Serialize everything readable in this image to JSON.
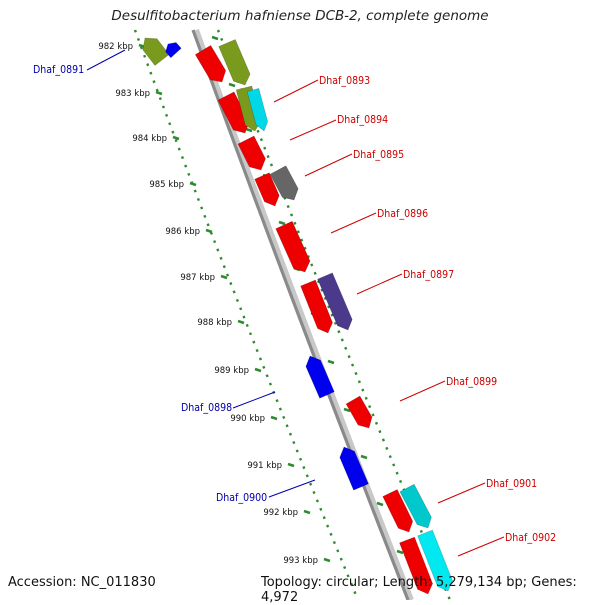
{
  "title": "Desulfitobacterium hafniense DCB-2, complete genome",
  "footer": {
    "accession": "Accession: NC_011830",
    "topology": "Topology: circular; Length: 5,279,134 bp; Genes: 4,972"
  },
  "colors": {
    "backbone": "#8a8a8a",
    "tick": "#2e8b2e",
    "label_forward": "#cc0000",
    "label_reverse": "#0000aa"
  },
  "ticks": [
    "982 kbp",
    "983 kbp",
    "984 kbp",
    "985 kbp",
    "986 kbp",
    "987 kbp",
    "988 kbp",
    "989 kbp",
    "990 kbp",
    "991 kbp",
    "992 kbp",
    "993 kbp"
  ],
  "labels": [
    {
      "name": "Dhaf_0891",
      "strand": "reverse"
    },
    {
      "name": "Dhaf_0893",
      "strand": "forward"
    },
    {
      "name": "Dhaf_0894",
      "strand": "forward"
    },
    {
      "name": "Dhaf_0895",
      "strand": "forward"
    },
    {
      "name": "Dhaf_0896",
      "strand": "forward"
    },
    {
      "name": "Dhaf_0897",
      "strand": "forward"
    },
    {
      "name": "Dhaf_0898",
      "strand": "reverse"
    },
    {
      "name": "Dhaf_0899",
      "strand": "forward"
    },
    {
      "name": "Dhaf_0900",
      "strand": "reverse"
    },
    {
      "name": "Dhaf_0901",
      "strand": "forward"
    },
    {
      "name": "Dhaf_0902",
      "strand": "forward"
    }
  ],
  "genes": [
    {
      "color": "#7a9a1e",
      "strand": "reverse"
    },
    {
      "color": "#0000ee",
      "strand": "reverse"
    },
    {
      "color": "#ee0000",
      "strand": "forward"
    },
    {
      "color": "#7a9a1e",
      "strand": "forward"
    },
    {
      "color": "#ee0000",
      "strand": "forward"
    },
    {
      "color": "#7a9a1e",
      "strand": "forward"
    },
    {
      "color": "#00d8e8",
      "strand": "forward"
    },
    {
      "color": "#ee0000",
      "strand": "forward"
    },
    {
      "color": "#ee0000",
      "strand": "forward"
    },
    {
      "color": "#666666",
      "strand": "forward"
    },
    {
      "color": "#ee0000",
      "strand": "forward"
    },
    {
      "color": "#ee0000",
      "strand": "forward"
    },
    {
      "color": "#4b3a8c",
      "strand": "forward"
    },
    {
      "color": "#0000ee",
      "strand": "reverse"
    },
    {
      "color": "#ee0000",
      "strand": "forward"
    },
    {
      "color": "#0000ee",
      "strand": "reverse"
    },
    {
      "color": "#ee0000",
      "strand": "forward"
    },
    {
      "color": "#00c8cc",
      "strand": "forward"
    },
    {
      "color": "#ee0000",
      "strand": "forward"
    },
    {
      "color": "#00e8f0",
      "strand": "forward"
    }
  ]
}
